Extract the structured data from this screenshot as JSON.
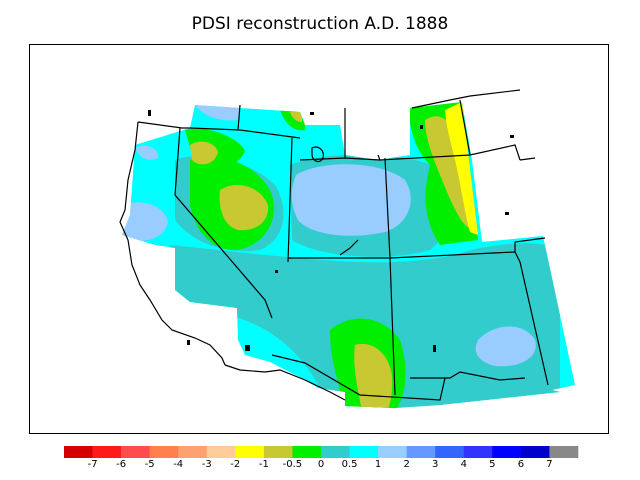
{
  "title": "PDSI reconstruction A.D. 1888",
  "legend": {
    "colors": [
      "#d40000",
      "#ff1a1a",
      "#ff4d4d",
      "#ff7f4d",
      "#ffa070",
      "#ffcc99",
      "#ffff00",
      "#c8c832",
      "#00ee00",
      "#33cccc",
      "#00ffff",
      "#99ccff",
      "#6699ff",
      "#3366ff",
      "#3333ff",
      "#0000ff",
      "#0000cc",
      "#888888"
    ],
    "labels": [
      "-7",
      "-6",
      "-5",
      "-4",
      "-3",
      "-2",
      "-1",
      "-0.5",
      "0",
      "0.5",
      "1",
      "2",
      "3",
      "4",
      "5",
      "6",
      "7"
    ]
  },
  "map": {
    "region": "Western United States",
    "palette": {
      "cyan": "#00ffff",
      "teal": "#33cccc",
      "lightblue": "#99ccff",
      "green": "#00ee00",
      "olive": "#c8c832",
      "yellow": "#ffff00",
      "border": "#000000"
    }
  }
}
